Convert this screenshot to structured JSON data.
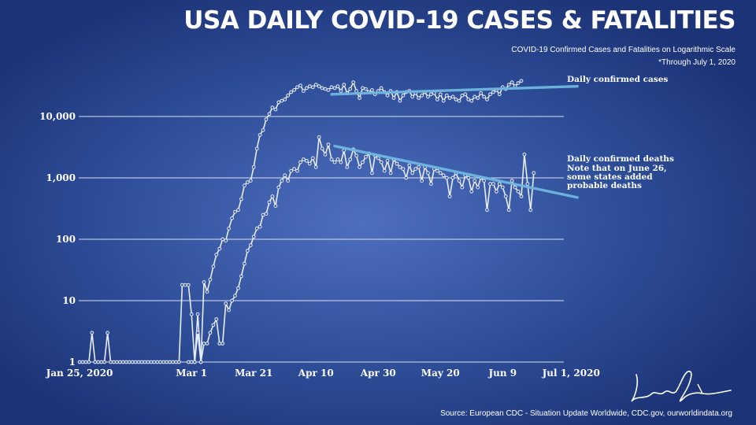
{
  "title": "USA DAILY COVID-19 CASES & FATALITIES",
  "subtitle_line1": "COVID-19 Confirmed Cases and Fatalities on Logarithmic Scale",
  "subtitle_line2": "*Through July 1, 2020",
  "source": "Source: European CDC - Situation Update Worldwide, CDC.gov, ourworldindata.org",
  "colors": {
    "background": "#3a5aa8",
    "data_line": "#e8ecf4",
    "trend_line": "#6fb7e0",
    "grid": "#d9dfee"
  },
  "chart_data": {
    "type": "line",
    "y_scale": "log",
    "ylim": [
      1,
      40000
    ],
    "xlim": [
      "2020-01-25",
      "2020-07-05"
    ],
    "grid": true,
    "x_ticks": [
      {
        "date": "2020-01-25",
        "label": "Jan 25, 2020"
      },
      {
        "date": "2020-03-01",
        "label": "Mar 1"
      },
      {
        "date": "2020-03-21",
        "label": "Mar 21"
      },
      {
        "date": "2020-04-10",
        "label": "Apr 10"
      },
      {
        "date": "2020-04-30",
        "label": "Apr 30"
      },
      {
        "date": "2020-05-20",
        "label": "May 20"
      },
      {
        "date": "2020-06-09",
        "label": "Jun 9"
      },
      {
        "date": "2020-07-01",
        "label": "Jul 1, 2020"
      }
    ],
    "y_ticks": [
      {
        "value": 1,
        "label": "1"
      },
      {
        "value": 10,
        "label": "10"
      },
      {
        "value": 100,
        "label": "100"
      },
      {
        "value": 1000,
        "label": "1,000"
      },
      {
        "value": 10000,
        "label": "10,000"
      }
    ],
    "series": [
      {
        "name": "Daily confirmed cases",
        "start_date": "2020-01-25",
        "values": [
          1,
          1,
          1,
          1,
          3,
          1,
          1,
          1,
          1,
          3,
          1,
          1,
          1,
          1,
          1,
          1,
          1,
          1,
          1,
          1,
          1,
          1,
          1,
          1,
          1,
          1,
          1,
          1,
          1,
          1,
          1,
          1,
          1,
          18,
          18,
          18,
          6,
          1,
          6,
          1,
          20,
          14,
          22,
          36,
          56,
          70,
          100,
          95,
          150,
          220,
          280,
          300,
          450,
          750,
          850,
          900,
          1500,
          3000,
          5000,
          6000,
          9000,
          11000,
          14000,
          13000,
          17000,
          18000,
          19000,
          22000,
          25000,
          27000,
          30000,
          32000,
          26000,
          29000,
          31000,
          30000,
          33000,
          31000,
          29000,
          28000,
          27000,
          30000,
          29000,
          31000,
          26000,
          33000,
          24000,
          28000,
          36000,
          26000,
          20000,
          29000,
          28000,
          25000,
          27000,
          23000,
          26000,
          29000,
          25000,
          22000,
          26000,
          20000,
          25000,
          18000,
          22000,
          25000,
          26000,
          21000,
          24000,
          20000,
          22000,
          25000,
          21000,
          23000,
          24000,
          19000,
          23000,
          18000,
          22000,
          20000,
          21000,
          19000,
          18000,
          22000,
          23000,
          19000,
          18000,
          21000,
          20000,
          24000,
          21000,
          19000,
          23000,
          25000,
          27000,
          23000,
          30000,
          28000,
          33000,
          36000,
          31000,
          35000,
          38000
        ],
        "trend_label": "Daily confirmed cases"
      },
      {
        "name": "Daily confirmed deaths",
        "start_date": "2020-02-29",
        "values": [
          1,
          1,
          1,
          3,
          1,
          2,
          2,
          3,
          4,
          5,
          2,
          2,
          9,
          7,
          10,
          12,
          16,
          25,
          40,
          65,
          80,
          110,
          150,
          160,
          250,
          260,
          400,
          500,
          350,
          700,
          900,
          1100,
          900,
          1300,
          1400,
          1300,
          1800,
          2000,
          1900,
          1700,
          2100,
          1500,
          4600,
          3000,
          2400,
          3500,
          2000,
          1800,
          2000,
          1800,
          2800,
          1500,
          2000,
          2900,
          2300,
          1500,
          1800,
          2200,
          2500,
          1200,
          2300,
          2100,
          1800,
          1300,
          1900,
          1200,
          2000,
          1700,
          1500,
          1400,
          1000,
          1600,
          1200,
          1400,
          1500,
          900,
          1500,
          1200,
          800,
          1400,
          1300,
          1200,
          1100,
          1000,
          500,
          1000,
          1200,
          900,
          700,
          1100,
          1000,
          600,
          900,
          700,
          1000,
          900,
          300,
          800,
          800,
          600,
          800,
          700,
          500,
          300,
          900,
          700,
          600,
          500,
          2400,
          800,
          300,
          1200
        ],
        "trend_label": "Daily confirmed deaths",
        "note": [
          "Note that on June 26,",
          "some states added",
          "probable deaths"
        ]
      }
    ],
    "trend_lines": [
      {
        "series": "Daily confirmed cases",
        "from": {
          "date": "2020-04-15",
          "value": 23000
        },
        "to": {
          "date": "2020-07-03",
          "value": 31000
        }
      },
      {
        "series": "Daily confirmed deaths",
        "from": {
          "date": "2020-04-16",
          "value": 3300
        },
        "to": {
          "date": "2020-07-03",
          "value": 480
        }
      }
    ]
  }
}
